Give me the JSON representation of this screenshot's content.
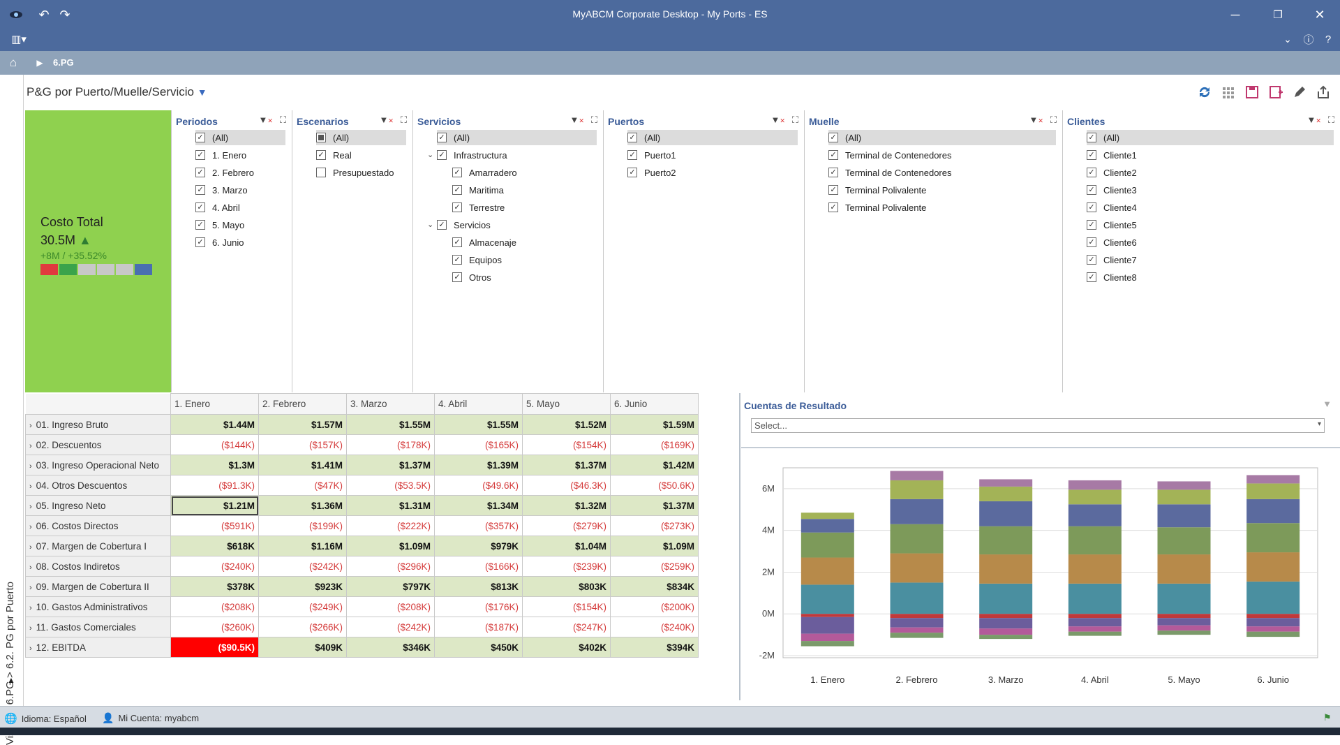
{
  "window": {
    "title": "MyABCM Corporate Desktop - My Ports - ES"
  },
  "nav": {
    "crumb": "6.PG"
  },
  "side": {
    "path": "Vistas > 6.PG > 6.2. PG por Puerto"
  },
  "page": {
    "title": "P&G por Puerto/Muelle/Servicio"
  },
  "kpi": {
    "label": "Costo Total",
    "value": "30.5M",
    "delta": "+8M  /  +35.52%",
    "swatches": [
      "#e0393e",
      "#3aa34b",
      "#c8c8c8",
      "#c8c8c8",
      "#c8c8c8",
      "#4a6fb0"
    ]
  },
  "filters": {
    "periodos": {
      "title": "Periodos",
      "items": [
        "(All)",
        "1. Enero",
        "2. Febrero",
        "3. Marzo",
        "4. Abril",
        "5. Mayo",
        "6. Junio"
      ]
    },
    "escenarios": {
      "title": "Escenarios",
      "items": [
        "(All)",
        "Real",
        "Presupuestado"
      ]
    },
    "servicios": {
      "title": "Servicios",
      "items": [
        "(All)",
        "Infrastructura",
        "Amarradero",
        "Maritima",
        "Terrestre",
        "Servicios",
        "Almacenaje",
        "Equipos",
        "Otros"
      ]
    },
    "puertos": {
      "title": "Puertos",
      "items": [
        "(All)",
        "Puerto1",
        "Puerto2"
      ]
    },
    "muelle": {
      "title": "Muelle",
      "items": [
        "(All)",
        "Terminal de Contenedores",
        "Terminal de Contenedores",
        "Terminal Polivalente",
        "Terminal Polivalente"
      ]
    },
    "clientes": {
      "title": "Clientes",
      "items": [
        "(All)",
        "Cliente1",
        "Cliente2",
        "Cliente3",
        "Cliente4",
        "Cliente5",
        "Cliente6",
        "Cliente7",
        "Cliente8"
      ]
    }
  },
  "table": {
    "columns": [
      "1. Enero",
      "2. Febrero",
      "3. Marzo",
      "4. Abril",
      "5. Mayo",
      "6. Junio"
    ],
    "rows": [
      {
        "label": "01. Ingreso Bruto",
        "values": [
          "$1.44M",
          "$1.57M",
          "$1.55M",
          "$1.55M",
          "$1.52M",
          "$1.59M"
        ]
      },
      {
        "label": "02. Descuentos",
        "values": [
          "($144K)",
          "($157K)",
          "($178K)",
          "($165K)",
          "($154K)",
          "($169K)"
        ]
      },
      {
        "label": "03. Ingreso Operacional Neto",
        "values": [
          "$1.3M",
          "$1.41M",
          "$1.37M",
          "$1.39M",
          "$1.37M",
          "$1.42M"
        ]
      },
      {
        "label": "04. Otros Descuentos",
        "values": [
          "($91.3K)",
          "($47K)",
          "($53.5K)",
          "($49.6K)",
          "($46.3K)",
          "($50.6K)"
        ]
      },
      {
        "label": "05. Ingreso Neto",
        "values": [
          "$1.21M",
          "$1.36M",
          "$1.31M",
          "$1.34M",
          "$1.32M",
          "$1.37M"
        ]
      },
      {
        "label": "06. Costos Directos",
        "values": [
          "($591K)",
          "($199K)",
          "($222K)",
          "($357K)",
          "($279K)",
          "($273K)"
        ]
      },
      {
        "label": "07. Margen de Cobertura I",
        "values": [
          "$618K",
          "$1.16M",
          "$1.09M",
          "$979K",
          "$1.04M",
          "$1.09M"
        ]
      },
      {
        "label": "08. Costos Indiretos",
        "values": [
          "($240K)",
          "($242K)",
          "($296K)",
          "($166K)",
          "($239K)",
          "($259K)"
        ]
      },
      {
        "label": "09. Margen de Cobertura II",
        "values": [
          "$378K",
          "$923K",
          "$797K",
          "$813K",
          "$803K",
          "$834K"
        ]
      },
      {
        "label": "10. Gastos Administrativos",
        "values": [
          "($208K)",
          "($249K)",
          "($208K)",
          "($176K)",
          "($154K)",
          "($200K)"
        ]
      },
      {
        "label": "11. Gastos Comerciales",
        "values": [
          "($260K)",
          "($266K)",
          "($242K)",
          "($187K)",
          "($247K)",
          "($240K)"
        ]
      },
      {
        "label": "12. EBITDA",
        "values": [
          "($90.5K)",
          "$409K",
          "$346K",
          "$450K",
          "$402K",
          "$394K"
        ]
      }
    ]
  },
  "accounts": {
    "title": "Cuentas de Resultado",
    "placeholder": "Select..."
  },
  "chart_data": {
    "type": "bar",
    "stacked": true,
    "categories": [
      "1. Enero",
      "2. Febrero",
      "3. Marzo",
      "4. Abril",
      "5. Mayo",
      "6. Junio"
    ],
    "ytick_labels": [
      "-2M",
      "0M",
      "2M",
      "4M",
      "6M"
    ],
    "ylim": [
      -2.1,
      7.0
    ],
    "grid": true,
    "series": [
      {
        "color": "#4a8fa0",
        "values": [
          1.4,
          1.5,
          1.45,
          1.45,
          1.45,
          1.55
        ]
      },
      {
        "color": "#b78a4a",
        "values": [
          1.3,
          1.4,
          1.4,
          1.4,
          1.4,
          1.4
        ]
      },
      {
        "color": "#7d9a5a",
        "values": [
          1.2,
          1.4,
          1.35,
          1.35,
          1.3,
          1.4
        ]
      },
      {
        "color": "#5b6a9e",
        "values": [
          0.65,
          1.2,
          1.2,
          1.05,
          1.1,
          1.15
        ]
      },
      {
        "color": "#a3b357",
        "values": [
          0.3,
          0.9,
          0.7,
          0.7,
          0.7,
          0.75
        ]
      },
      {
        "color": "#a77aa5",
        "values": [
          0.0,
          0.45,
          0.35,
          0.45,
          0.4,
          0.4
        ]
      },
      {
        "color": "#c0393b",
        "values": [
          -0.15,
          -0.2,
          -0.2,
          -0.2,
          -0.2,
          -0.2
        ]
      },
      {
        "color": "#6b5d9c",
        "values": [
          -0.8,
          -0.45,
          -0.5,
          -0.4,
          -0.35,
          -0.4
        ]
      },
      {
        "color": "#b35a9a",
        "values": [
          -0.35,
          -0.25,
          -0.3,
          -0.25,
          -0.25,
          -0.25
        ]
      },
      {
        "color": "#7b9a6a",
        "values": [
          -0.25,
          -0.25,
          -0.2,
          -0.2,
          -0.2,
          -0.25
        ]
      }
    ]
  },
  "status": {
    "language": "Idioma: Español",
    "account": "Mi Cuenta: myabcm"
  }
}
